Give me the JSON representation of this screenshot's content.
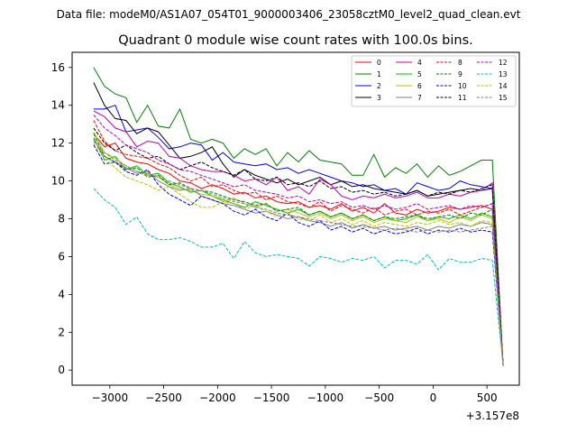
{
  "chart_data": {
    "type": "line",
    "suptitle": "Data file: modeM0/AS1A07_054T01_9000003406_23058cztM0_level2_quad_clean.evt",
    "title": "Quadrant 0 module wise count rates with 100.0s bins.",
    "xlabel": "",
    "ylabel": "",
    "x_offset_label": "+3.157e8",
    "xlim": [
      -3350,
      800
    ],
    "ylim": [
      -0.8,
      16.8
    ],
    "xticks": [
      -3000,
      -2500,
      -2000,
      -1500,
      -1000,
      -500,
      0,
      500
    ],
    "xtick_labels": [
      "−3000",
      "−2500",
      "−2000",
      "−1500",
      "−1000",
      "−500",
      "0",
      "500"
    ],
    "yticks": [
      0,
      2,
      4,
      6,
      8,
      10,
      12,
      14,
      16
    ],
    "ytick_labels": [
      "0",
      "2",
      "4",
      "6",
      "8",
      "10",
      "12",
      "14",
      "16"
    ],
    "legend_location": "top-right",
    "x": [
      -3150,
      -3050,
      -2950,
      -2850,
      -2750,
      -2650,
      -2550,
      -2450,
      -2350,
      -2250,
      -2150,
      -2050,
      -1950,
      -1850,
      -1750,
      -1650,
      -1550,
      -1450,
      -1350,
      -1250,
      -1150,
      -1050,
      -950,
      -850,
      -750,
      -650,
      -550,
      -450,
      -350,
      -250,
      -150,
      -50,
      50,
      150,
      250,
      350,
      450,
      550,
      650
    ],
    "series": [
      {
        "name": "0",
        "color": "#ff0000",
        "dash": "solid",
        "values": [
          12.5,
          11.8,
          12.0,
          11.2,
          11.0,
          10.9,
          10.6,
          10.4,
          10.0,
          9.9,
          9.6,
          9.8,
          9.6,
          9.3,
          9.4,
          9.1,
          9.2,
          8.9,
          8.8,
          8.9,
          8.6,
          8.7,
          8.5,
          8.8,
          8.4,
          8.6,
          8.3,
          8.8,
          8.3,
          8.2,
          8.5,
          8.3,
          8.4,
          8.6,
          8.5,
          8.6,
          8.7,
          8.5,
          0.2
        ]
      },
      {
        "name": "1",
        "color": "#008000",
        "dash": "solid",
        "values": [
          16.0,
          15.0,
          14.6,
          14.4,
          13.1,
          14.0,
          12.9,
          12.8,
          13.8,
          12.2,
          12.0,
          12.2,
          12.0,
          11.2,
          11.7,
          11.4,
          11.7,
          10.8,
          11.5,
          11.0,
          11.6,
          11.1,
          11.0,
          10.9,
          10.3,
          10.3,
          11.4,
          10.2,
          10.7,
          10.4,
          10.9,
          10.2,
          10.8,
          10.3,
          10.5,
          10.8,
          11.1,
          11.1,
          0.2
        ]
      },
      {
        "name": "2",
        "color": "#0000ff",
        "dash": "solid",
        "values": [
          13.8,
          13.8,
          14.0,
          12.6,
          12.7,
          12.8,
          12.3,
          11.7,
          11.8,
          12.0,
          11.9,
          11.1,
          11.5,
          11.0,
          10.9,
          10.8,
          10.9,
          10.6,
          10.7,
          10.4,
          10.6,
          10.4,
          10.2,
          10.0,
          9.9,
          9.7,
          9.8,
          9.5,
          9.6,
          9.3,
          9.9,
          9.7,
          9.5,
          9.6,
          10.0,
          9.8,
          9.7,
          9.6,
          0.2
        ]
      },
      {
        "name": "3",
        "color": "#000000",
        "dash": "solid",
        "values": [
          15.2,
          14.0,
          13.3,
          13.2,
          12.5,
          12.8,
          12.6,
          11.9,
          11.2,
          11.3,
          11.5,
          11.8,
          10.9,
          10.2,
          10.6,
          10.3,
          10.1,
          9.9,
          10.1,
          9.8,
          10.0,
          10.2,
          9.8,
          10.0,
          9.7,
          9.8,
          9.6,
          9.5,
          9.4,
          9.3,
          9.5,
          9.2,
          9.3,
          9.4,
          9.5,
          9.6,
          9.5,
          9.6,
          0.2
        ]
      },
      {
        "name": "4",
        "color": "#bf00bf",
        "dash": "solid",
        "values": [
          13.7,
          13.4,
          12.8,
          12.6,
          11.8,
          12.1,
          12.0,
          11.3,
          11.2,
          10.8,
          10.6,
          10.5,
          10.5,
          10.3,
          10.0,
          10.1,
          9.8,
          10.2,
          9.5,
          9.7,
          9.3,
          10.1,
          9.8,
          9.2,
          9.0,
          9.2,
          9.1,
          9.3,
          9.1,
          9.2,
          9.4,
          9.1,
          9.1,
          9.3,
          9.2,
          9.4,
          9.5,
          9.9,
          0.2
        ]
      },
      {
        "name": "5",
        "color": "#00bf00",
        "dash": "solid",
        "values": [
          12.3,
          11.1,
          11.3,
          10.6,
          10.8,
          10.3,
          10.4,
          9.9,
          9.7,
          9.4,
          9.5,
          9.2,
          9.0,
          8.8,
          8.6,
          8.9,
          8.7,
          8.5,
          8.3,
          8.5,
          8.2,
          8.4,
          8.1,
          8.3,
          8.0,
          8.2,
          7.9,
          8.1,
          7.9,
          8.0,
          8.2,
          7.9,
          8.1,
          8.0,
          8.2,
          8.0,
          8.3,
          8.1,
          0.2
        ]
      },
      {
        "name": "6",
        "color": "#bfbf00",
        "dash": "solid",
        "values": [
          12.6,
          11.5,
          11.2,
          10.8,
          10.5,
          10.3,
          10.2,
          9.8,
          9.6,
          9.5,
          9.3,
          9.2,
          8.9,
          9.1,
          8.8,
          8.6,
          8.8,
          8.4,
          8.5,
          8.3,
          8.1,
          8.3,
          8.0,
          8.2,
          7.9,
          8.1,
          7.8,
          8.0,
          7.9,
          7.8,
          8.1,
          7.9,
          8.0,
          7.8,
          8.1,
          7.9,
          8.2,
          8.0,
          0.2
        ]
      },
      {
        "name": "7",
        "color": "#808080",
        "dash": "solid",
        "values": [
          12.2,
          11.3,
          11.0,
          10.7,
          10.4,
          10.5,
          10.0,
          9.7,
          9.5,
          9.6,
          9.2,
          9.0,
          8.8,
          8.7,
          8.5,
          8.3,
          8.4,
          8.2,
          8.0,
          8.1,
          7.9,
          7.8,
          7.6,
          7.8,
          7.5,
          7.7,
          7.5,
          7.6,
          7.4,
          7.5,
          7.6,
          7.4,
          7.6,
          7.5,
          7.7,
          7.6,
          7.8,
          7.7,
          0.2
        ]
      },
      {
        "name": "8",
        "color": "#ff0000",
        "dash": "dashed",
        "values": [
          13.2,
          12.1,
          11.6,
          11.4,
          11.3,
          11.2,
          10.9,
          10.7,
          10.3,
          10.0,
          10.2,
          9.7,
          9.8,
          9.5,
          9.3,
          9.4,
          9.0,
          9.2,
          8.9,
          8.8,
          8.6,
          8.9,
          8.4,
          8.7,
          8.5,
          8.3,
          8.6,
          8.2,
          8.4,
          8.5,
          8.2,
          8.4,
          8.3,
          8.5,
          8.2,
          8.4,
          8.6,
          8.8,
          0.2
        ]
      },
      {
        "name": "9",
        "color": "#008000",
        "dash": "dashed",
        "values": [
          12.5,
          11.3,
          11.0,
          10.6,
          10.7,
          10.2,
          10.3,
          9.8,
          9.9,
          9.6,
          9.5,
          9.4,
          9.2,
          9.0,
          8.9,
          8.7,
          8.8,
          8.4,
          8.5,
          8.6,
          8.2,
          8.4,
          8.1,
          8.3,
          8.0,
          8.2,
          7.9,
          8.1,
          8.0,
          8.1,
          8.2,
          8.0,
          8.1,
          8.2,
          8.0,
          8.3,
          8.2,
          8.5,
          0.2
        ]
      },
      {
        "name": "10",
        "color": "#0000ff",
        "dash": "dashed",
        "values": [
          11.9,
          10.9,
          11.0,
          10.5,
          10.3,
          10.6,
          9.8,
          9.3,
          9.0,
          8.7,
          9.2,
          9.0,
          8.8,
          8.4,
          8.2,
          8.5,
          8.1,
          7.9,
          8.3,
          7.8,
          7.6,
          7.9,
          7.4,
          7.6,
          7.3,
          7.5,
          7.2,
          7.4,
          7.2,
          7.3,
          7.5,
          7.2,
          7.4,
          7.3,
          7.5,
          7.3,
          7.4,
          7.3,
          0.2
        ]
      },
      {
        "name": "11",
        "color": "#000000",
        "dash": "dashed",
        "values": [
          12.8,
          12.0,
          11.6,
          11.9,
          11.5,
          11.2,
          11.3,
          10.9,
          10.6,
          10.8,
          11.0,
          10.7,
          10.5,
          10.3,
          10.6,
          10.1,
          10.0,
          10.2,
          9.8,
          9.9,
          9.7,
          10.0,
          9.6,
          9.7,
          9.4,
          9.5,
          9.3,
          9.4,
          9.2,
          9.3,
          9.5,
          9.2,
          9.4,
          9.3,
          9.5,
          9.4,
          9.6,
          9.8,
          0.2
        ]
      },
      {
        "name": "12",
        "color": "#bf00bf",
        "dash": "dashed",
        "values": [
          13.5,
          12.8,
          12.4,
          11.9,
          11.7,
          11.5,
          11.1,
          10.9,
          10.6,
          10.5,
          10.3,
          10.1,
          9.9,
          9.7,
          9.8,
          9.5,
          9.4,
          9.3,
          9.1,
          9.2,
          8.9,
          9.0,
          8.8,
          8.9,
          8.6,
          8.7,
          8.5,
          8.7,
          8.5,
          8.6,
          8.8,
          8.5,
          8.6,
          8.7,
          8.5,
          8.7,
          8.6,
          8.8,
          0.2
        ]
      },
      {
        "name": "13",
        "color": "#00bfbf",
        "dash": "dashed",
        "values": [
          9.6,
          9.0,
          8.6,
          7.7,
          8.1,
          7.2,
          6.9,
          6.9,
          7.0,
          6.8,
          6.5,
          6.5,
          6.7,
          5.9,
          6.8,
          6.2,
          6.0,
          6.1,
          6.0,
          5.9,
          5.5,
          6.0,
          5.9,
          5.7,
          5.9,
          5.8,
          6.0,
          5.4,
          5.8,
          5.8,
          5.6,
          6.1,
          5.3,
          5.9,
          5.7,
          5.7,
          5.9,
          5.8,
          0.2
        ]
      },
      {
        "name": "14",
        "color": "#bfbf00",
        "dash": "dashed",
        "values": [
          12.0,
          11.2,
          10.7,
          10.2,
          10.0,
          9.8,
          9.5,
          9.7,
          9.3,
          8.9,
          8.6,
          8.6,
          8.9,
          8.8,
          8.5,
          8.7,
          8.4,
          8.1,
          8.3,
          8.0,
          7.9,
          8.2,
          7.8,
          8.0,
          7.7,
          7.9,
          7.6,
          7.8,
          7.7,
          7.6,
          7.8,
          7.7,
          7.9,
          7.7,
          7.8,
          7.6,
          7.9,
          7.8,
          0.2
        ]
      },
      {
        "name": "15",
        "color": "#808080",
        "dash": "dashed",
        "values": [
          12.1,
          11.5,
          11.1,
          10.8,
          10.5,
          10.4,
          10.2,
          10.0,
          9.8,
          9.6,
          9.5,
          9.3,
          9.1,
          8.9,
          8.8,
          8.6,
          8.5,
          8.3,
          8.2,
          8.1,
          8.0,
          7.9,
          7.8,
          7.7,
          7.6,
          7.6,
          7.5,
          7.4,
          7.5,
          7.4,
          7.3,
          7.4,
          7.3,
          7.4,
          7.3,
          7.4,
          7.5,
          7.6,
          0.2
        ]
      }
    ]
  }
}
